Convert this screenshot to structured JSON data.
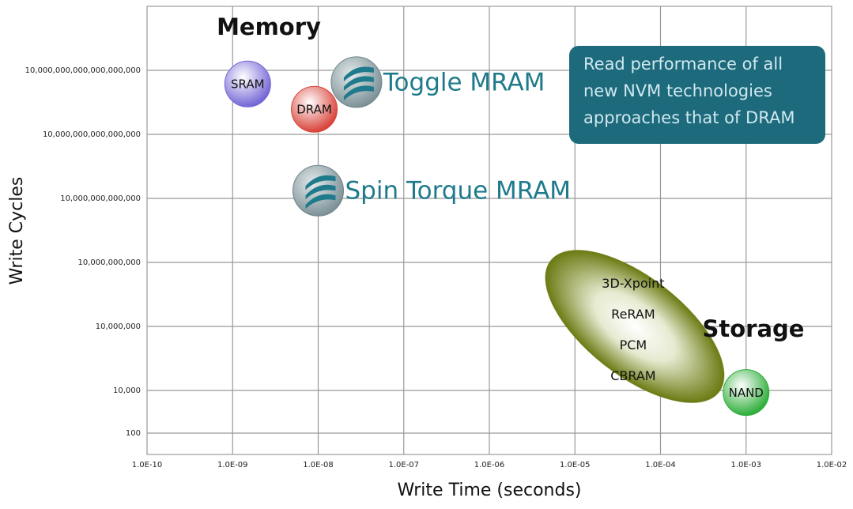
{
  "chart_data": {
    "type": "scatter",
    "xlabel": "Write Time (seconds)",
    "ylabel": "Write Cycles",
    "log_x": true,
    "log_y": true,
    "grid": true,
    "xlim": [
      1e-10,
      0.01
    ],
    "ylim": [
      10,
      1e+22
    ],
    "xticks": [
      {
        "value": 1e-10,
        "label": "1.0E-10"
      },
      {
        "value": 1e-09,
        "label": "1.0E-09"
      },
      {
        "value": 1e-08,
        "label": "1.0E-08"
      },
      {
        "value": 1e-07,
        "label": "1.0E-07"
      },
      {
        "value": 1e-06,
        "label": "1.0E-06"
      },
      {
        "value": 1e-05,
        "label": "1.0E-05"
      },
      {
        "value": 0.0001,
        "label": "1.0E-04"
      },
      {
        "value": 0.001,
        "label": "1.0E-03"
      },
      {
        "value": 0.01,
        "label": "1.0E-02"
      }
    ],
    "yticks": [
      100,
      {
        "value": 10000,
        "label": "10,000"
      },
      {
        "value": 10000000.0,
        "label": "10,000,000"
      },
      {
        "value": 10000000000.0,
        "label": "10,000,000,000"
      },
      {
        "value": 10000000000000.0,
        "label": "10,000,000,000,000"
      },
      {
        "value": 1e+16,
        "label": "10,000,000,000,000,000"
      },
      {
        "value": 1e+19,
        "label": "10,000,000,000,000,000,000"
      }
    ],
    "points": [
      {
        "label": "SRAM",
        "x": 1.5e-09,
        "y": 2.3e+18,
        "color": "#7466d6",
        "style": "ball"
      },
      {
        "label": "DRAM",
        "x": 9e-09,
        "y": 1.5e+17,
        "color": "#d8433a",
        "style": "ball"
      },
      {
        "label": "Toggle MRAM",
        "x": 2.8e-08,
        "y": 2.8e+18,
        "color": "#1f7a8c",
        "style": "icon"
      },
      {
        "label": "Spin Torque MRAM",
        "x": 1e-08,
        "y": 23000000000000.0,
        "color": "#1f7a8c",
        "style": "icon"
      },
      {
        "label": "NAND",
        "x": 0.001,
        "y": 8000,
        "color": "#2eae3a",
        "style": "ball"
      }
    ],
    "region": {
      "labels": [
        "3D-Xpoint",
        "ReRAM",
        "PCM",
        "CBRAM"
      ],
      "x": 5e-05,
      "y": 10000000.0,
      "color": "#6b7a12"
    },
    "annotations": [
      "Memory",
      "Storage"
    ],
    "callout": {
      "lines": [
        "Read performance of all",
        "new NVM technologies",
        "approaches that of DRAM"
      ],
      "color": "#1d6a7d"
    }
  }
}
